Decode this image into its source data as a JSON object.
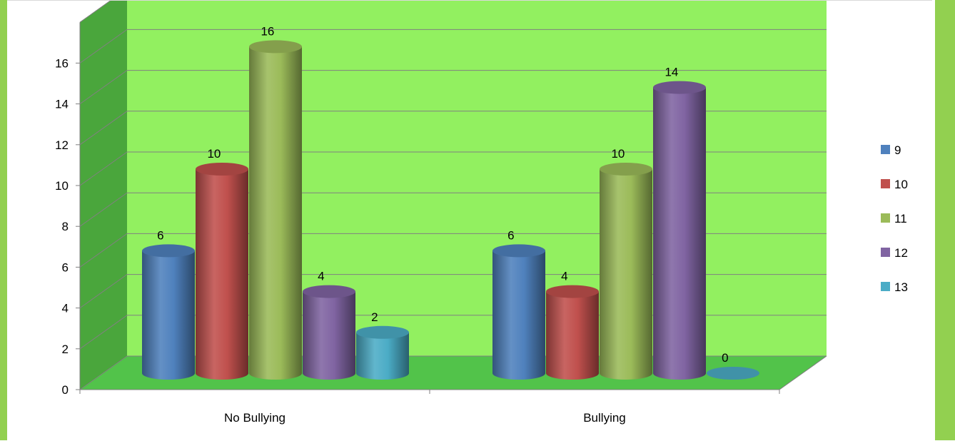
{
  "chart_data": {
    "type": "bar",
    "style": "3d-cylinder",
    "categories": [
      "No Bullying",
      "Bullying"
    ],
    "series": [
      {
        "name": "9",
        "values": [
          6,
          6
        ],
        "color": "#4f81bd"
      },
      {
        "name": "10",
        "values": [
          10,
          4
        ],
        "color": "#c0504d"
      },
      {
        "name": "11",
        "values": [
          16,
          10
        ],
        "color": "#9bbb59"
      },
      {
        "name": "12",
        "values": [
          4,
          14
        ],
        "color": "#8064a2"
      },
      {
        "name": "13",
        "values": [
          2,
          0
        ],
        "color": "#4bacc6"
      }
    ],
    "yticks": [
      0,
      2,
      4,
      6,
      8,
      10,
      12,
      14,
      16
    ],
    "ylim": [
      0,
      16
    ],
    "title": "",
    "xlabel": "",
    "ylabel": "",
    "grid": true,
    "legend_position": "right",
    "colors": {
      "back_wall": "#92f060",
      "side_wall": "#4aa63c",
      "floor": "#52c34a",
      "frame": "#92d050",
      "grid": "#808080"
    }
  }
}
